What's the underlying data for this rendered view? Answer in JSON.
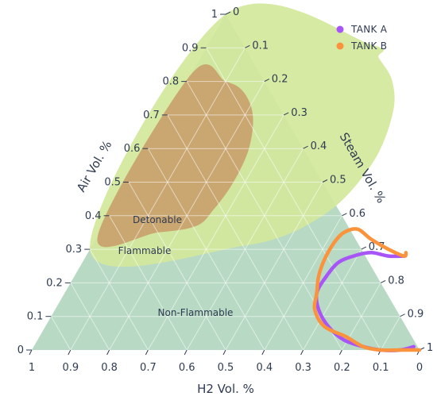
{
  "chart_data": {
    "type": "ternary",
    "axes": {
      "air": {
        "title": "Air Vol. %",
        "ticks": [
          0,
          0.1,
          0.2,
          0.3,
          0.4,
          0.5,
          0.6,
          0.7,
          0.8,
          0.9,
          1
        ]
      },
      "steam": {
        "title": "Steam Vol. %",
        "ticks": [
          0,
          0.1,
          0.2,
          0.3,
          0.4,
          0.5,
          0.6,
          0.7,
          0.8,
          0.9,
          1
        ]
      },
      "h2": {
        "title": "H2 Vol. %",
        "ticks": [
          1,
          0.9,
          0.8,
          0.7,
          0.6,
          0.5,
          0.4,
          0.3,
          0.2,
          0.1,
          0
        ]
      }
    },
    "regions": [
      {
        "label": "Non-Flammable",
        "color": "#b8d9c4",
        "boundary": [
          [
            0,
            0
          ],
          [
            1,
            0
          ],
          [
            0,
            1
          ]
        ]
      },
      {
        "label": "Flammable",
        "color": "#d2e89c",
        "boundary": [
          [
            0,
            0.3
          ],
          [
            0.39,
            0.31
          ],
          [
            0.55,
            0.4
          ],
          [
            0.6,
            0.55
          ],
          [
            0.58,
            0.7
          ],
          [
            0.53,
            0.8
          ],
          [
            0.46,
            0.87
          ],
          [
            0.42,
            0.91
          ],
          [
            0,
            1
          ]
        ]
      },
      {
        "label": "Detonable",
        "color": "#c9a16c",
        "boundary": [
          [
            0,
            0.34
          ],
          [
            0.15,
            0.35
          ],
          [
            0.24,
            0.37
          ],
          [
            0.26,
            0.42
          ],
          [
            0.27,
            0.5
          ],
          [
            0.26,
            0.6
          ],
          [
            0.22,
            0.7
          ],
          [
            0.16,
            0.77
          ],
          [
            0.1,
            0.8
          ],
          [
            0,
            0.82
          ]
        ]
      }
    ],
    "series": [
      {
        "name": "TANK A",
        "color": "#a855f7",
        "points": [
          [
            0.98,
            0.01
          ],
          [
            0.95,
            0.0
          ],
          [
            0.9,
            0.0
          ],
          [
            0.85,
            0.01
          ],
          [
            0.79,
            0.03
          ],
          [
            0.73,
            0.07
          ],
          [
            0.68,
            0.12
          ],
          [
            0.65,
            0.17
          ],
          [
            0.65,
            0.22
          ],
          [
            0.66,
            0.26
          ],
          [
            0.69,
            0.28
          ],
          [
            0.73,
            0.29
          ],
          [
            0.78,
            0.28
          ],
          [
            0.82,
            0.28
          ]
        ]
      },
      {
        "name": "TANK B",
        "color": "#fb923c",
        "points": [
          [
            1.0,
            0.0
          ],
          [
            0.95,
            0.0
          ],
          [
            0.9,
            0.0
          ],
          [
            0.85,
            0.01
          ],
          [
            0.79,
            0.04
          ],
          [
            0.72,
            0.07
          ],
          [
            0.67,
            0.12
          ],
          [
            0.65,
            0.17
          ],
          [
            0.63,
            0.22
          ],
          [
            0.62,
            0.27
          ],
          [
            0.62,
            0.32
          ],
          [
            0.63,
            0.35
          ],
          [
            0.66,
            0.36
          ],
          [
            0.71,
            0.33
          ],
          [
            0.77,
            0.3
          ],
          [
            0.82,
            0.28
          ],
          [
            0.82,
            0.29
          ]
        ]
      }
    ],
    "annotations": [
      "Detonable",
      "Flammable",
      "Non-Flammable"
    ],
    "legend_placement": "top-right",
    "grid": true
  }
}
